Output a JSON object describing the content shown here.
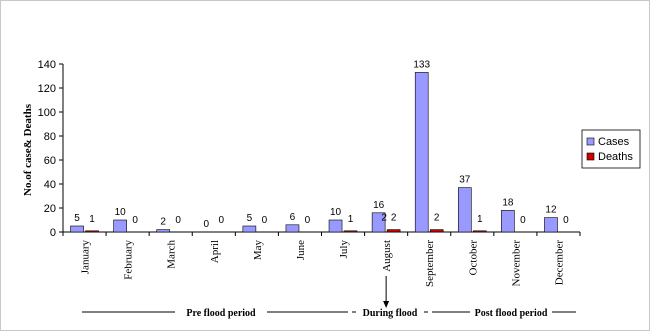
{
  "chart_data": {
    "type": "bar",
    "title": "",
    "xlabel": "",
    "ylabel": "No.of case& Deaths",
    "ylim": [
      0,
      140
    ],
    "yticks": [
      0,
      20,
      40,
      60,
      80,
      100,
      120,
      140
    ],
    "categories": [
      "January",
      "February",
      "March",
      "April",
      "May",
      "June",
      "July",
      "August",
      "September",
      "October",
      "November",
      "December"
    ],
    "series": [
      {
        "name": "Cases",
        "color": "#9999ff",
        "values": [
          5,
          10,
          2,
          0,
          5,
          6,
          10,
          16,
          133,
          37,
          18,
          12
        ],
        "labels": [
          "5",
          "10",
          "2",
          "0",
          "5",
          "6",
          "10",
          "16",
          "133",
          "37",
          "18",
          "12"
        ]
      },
      {
        "name": "Deaths",
        "color": "#cc0000",
        "values": [
          1,
          0,
          0,
          0,
          0,
          0,
          1,
          2,
          2,
          1,
          0,
          0
        ],
        "labels": [
          "1",
          "0",
          "0",
          "0",
          "0",
          "0",
          "1",
          "2",
          "2",
          "1",
          "0",
          "0"
        ]
      }
    ],
    "legend_position": "right",
    "grid": false,
    "period_annotations": [
      {
        "label": "Pre flood period",
        "from": "January",
        "to": "July"
      },
      {
        "label": "During flood",
        "from": "August",
        "to": "August"
      },
      {
        "label": "Post flood period",
        "from": "September",
        "to": "December"
      }
    ],
    "extra_labels": [
      {
        "text": "2",
        "near": "August"
      }
    ]
  }
}
